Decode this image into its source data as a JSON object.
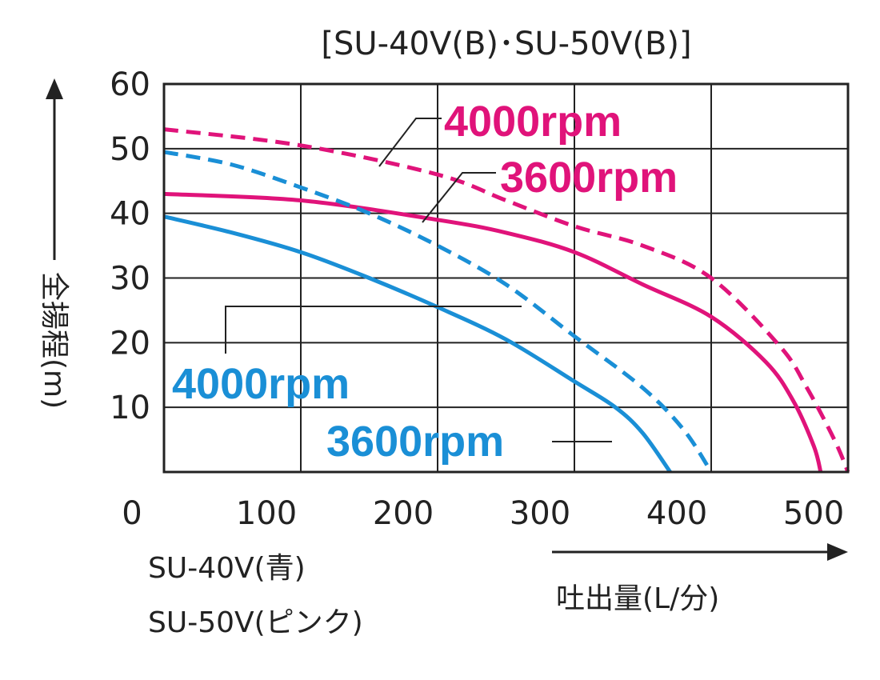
{
  "colors": {
    "pink": "#E0137A",
    "blue": "#1A8FD6",
    "grid": "#222222",
    "text": "#222222"
  },
  "chart_data": {
    "type": "line",
    "title": "[SU-40V(B)･SU-50V(B)]",
    "xlabel": "吐出量(L/分)",
    "ylabel": "全揚程(m)",
    "xlim": [
      0,
      500
    ],
    "ylim": [
      0,
      60
    ],
    "xticks": [
      "0",
      "100",
      "200",
      "300",
      "400",
      "500"
    ],
    "yticks": [
      "10",
      "20",
      "30",
      "40",
      "50",
      "60"
    ],
    "grid": true,
    "model_legend": [
      "SU-40V(青)",
      "SU-50V(ピンク)"
    ],
    "series": [
      {
        "name": "SU-50V 4000rpm",
        "label": "4000rpm",
        "model": "SU-50V",
        "color": "pink",
        "dash": true,
        "x": [
          0,
          100,
          200,
          250,
          300,
          350,
          400,
          450,
          470,
          490,
          500
        ],
        "y": [
          53.0,
          50.5,
          46.0,
          42.0,
          38.0,
          35.0,
          30.0,
          19.5,
          13.0,
          5.0,
          0
        ]
      },
      {
        "name": "SU-50V 3600rpm",
        "label": "3600rpm",
        "model": "SU-50V",
        "color": "pink",
        "dash": false,
        "x": [
          0,
          100,
          200,
          250,
          300,
          350,
          400,
          440,
          460,
          475,
          480
        ],
        "y": [
          43.0,
          42.0,
          39.0,
          37.0,
          34.0,
          29.0,
          24.0,
          17.0,
          11.0,
          4.0,
          0
        ]
      },
      {
        "name": "SU-40V 4000rpm",
        "label": "4000rpm",
        "model": "SU-40V",
        "color": "blue",
        "dash": true,
        "x": [
          0,
          50,
          100,
          150,
          200,
          250,
          300,
          350,
          380,
          400
        ],
        "y": [
          49.5,
          47.5,
          44.0,
          40.0,
          35.0,
          29.0,
          21.0,
          13.0,
          6.5,
          0
        ]
      },
      {
        "name": "SU-40V 3600rpm",
        "label": "3600rpm",
        "model": "SU-40V",
        "color": "blue",
        "dash": false,
        "x": [
          0,
          50,
          100,
          150,
          200,
          250,
          300,
          330,
          350,
          370
        ],
        "y": [
          39.5,
          37.0,
          34.0,
          30.0,
          25.5,
          20.5,
          14.0,
          10.0,
          6.0,
          0
        ]
      }
    ]
  }
}
